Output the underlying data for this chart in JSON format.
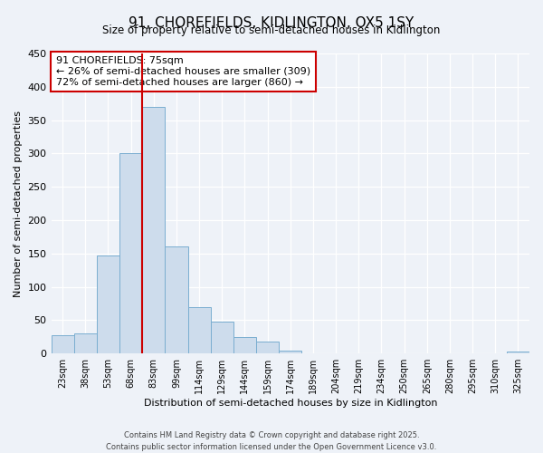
{
  "title": "91, CHOREFIELDS, KIDLINGTON, OX5 1SY",
  "subtitle": "Size of property relative to semi-detached houses in Kidlington",
  "xlabel": "Distribution of semi-detached houses by size in Kidlington",
  "ylabel": "Number of semi-detached properties",
  "bar_labels": [
    "23sqm",
    "38sqm",
    "53sqm",
    "68sqm",
    "83sqm",
    "99sqm",
    "114sqm",
    "129sqm",
    "144sqm",
    "159sqm",
    "174sqm",
    "189sqm",
    "204sqm",
    "219sqm",
    "234sqm",
    "250sqm",
    "265sqm",
    "280sqm",
    "295sqm",
    "310sqm",
    "325sqm"
  ],
  "bar_values": [
    27,
    30,
    147,
    300,
    370,
    160,
    70,
    48,
    25,
    18,
    5,
    0,
    0,
    0,
    0,
    0,
    0,
    0,
    0,
    0,
    3
  ],
  "bar_color": "#cddcec",
  "bar_edge_color": "#7aaed0",
  "ylim": [
    0,
    450
  ],
  "yticks": [
    0,
    50,
    100,
    150,
    200,
    250,
    300,
    350,
    400,
    450
  ],
  "vline_color": "#cc0000",
  "annotation_title": "91 CHOREFIELDS: 75sqm",
  "annotation_line1": "← 26% of semi-detached houses are smaller (309)",
  "annotation_line2": "72% of semi-detached houses are larger (860) →",
  "annotation_box_color": "#ffffff",
  "annotation_box_edge": "#cc0000",
  "footer1": "Contains HM Land Registry data © Crown copyright and database right 2025.",
  "footer2": "Contains public sector information licensed under the Open Government Licence v3.0.",
  "bg_color": "#eef2f8"
}
